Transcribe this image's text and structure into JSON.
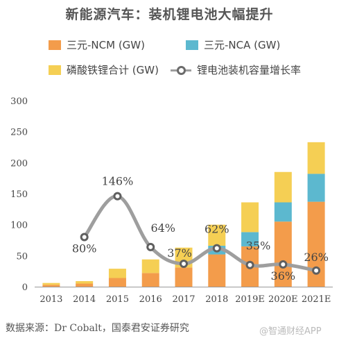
{
  "chart_data": {
    "type": "bar",
    "title": "新能源汽车：装机锂电池大幅提升",
    "categories": [
      "2013",
      "2014",
      "2015",
      "2016",
      "2017",
      "2018",
      "2019E",
      "2020E",
      "2021E"
    ],
    "series": [
      {
        "name": "三元-NCM (GW)",
        "values": [
          3,
          5,
          14,
          22,
          31,
          52,
          65,
          105,
          137
        ],
        "color": "#f39c4b"
      },
      {
        "name": "三元-NCA (GW)",
        "values": [
          0,
          0,
          0,
          0,
          0,
          14,
          23,
          31,
          45
        ],
        "color": "#5cb8cf"
      },
      {
        "name": "磷酸铁锂合计 (GW)",
        "values": [
          3,
          4,
          15,
          22,
          32,
          34,
          48,
          49,
          51
        ],
        "color": "#f5cf54"
      }
    ],
    "line_series": {
      "name": "锂电池装机容量增长率",
      "values": [
        null,
        80,
        146,
        64,
        37,
        62,
        35,
        36,
        26
      ],
      "labels": [
        "",
        "80%",
        "146%",
        "64%",
        "37%",
        "62%",
        "35%",
        "36%",
        "26%"
      ],
      "color": "#9e9e9e"
    },
    "yticks": [
      "300",
      "250",
      "200",
      "150",
      "100",
      "50",
      "0"
    ],
    "ylim": [
      0,
      300
    ],
    "grid": false,
    "legend": "top"
  },
  "legend": {
    "ncm": "三元-NCM (GW)",
    "nca": "三元-NCA (GW)",
    "lfp": "磷酸铁锂合计 (GW)",
    "growth": "锂电池装机容量增长率"
  },
  "footer": {
    "source": "数据来源：Dr Cobalt，国泰君安证券研究",
    "watermark": "@智通财经APP"
  }
}
